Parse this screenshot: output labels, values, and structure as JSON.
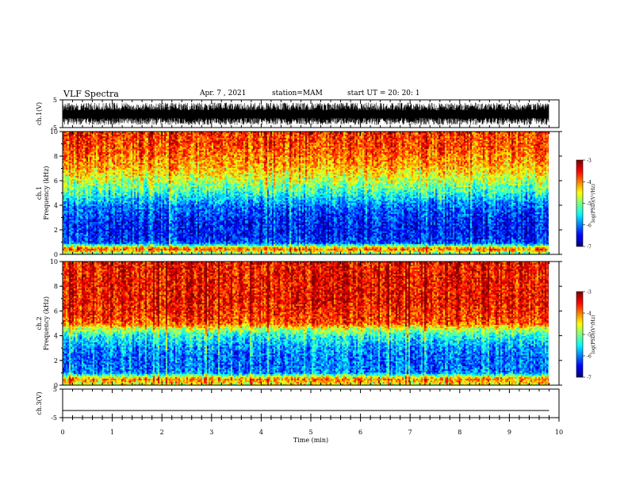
{
  "header": {
    "title": "VLF Spectra",
    "date": "Apr. 7 , 2021",
    "station": "station=MAM",
    "start": "start UT =  20: 20: 1"
  },
  "colorbar": {
    "label": "log(PSD)(V²/Hz)",
    "ticks": [
      "-3",
      "-4",
      "-5",
      "-6",
      "-7"
    ]
  },
  "chart_data": [
    {
      "type": "line",
      "panel": "ch1-waveform",
      "ylabel": "ch.1(V)",
      "ylim": [
        -5,
        5
      ],
      "yticks": [
        "5",
        "-5"
      ],
      "xlim": [
        0,
        10
      ],
      "trace": "dense noisy waveform spanning roughly -4 to 4 V over 0-9.8 min"
    },
    {
      "type": "heatmap",
      "panel": "ch1-spectrogram",
      "ylabel": "ch.1",
      "ylabel2": "Frequency (kHz)",
      "xlim": [
        0,
        10
      ],
      "ylim": [
        0,
        10
      ],
      "yticks": [
        "0",
        "2",
        "4",
        "6",
        "8",
        "10"
      ],
      "clim": [
        -7,
        -3
      ],
      "data_x_end": 9.8,
      "profile_freq_khz": [
        0,
        0.5,
        1,
        2,
        3,
        4,
        5,
        6,
        7,
        8,
        9,
        10
      ],
      "profile_log_psd": [
        -5.5,
        -3.8,
        -6.3,
        -6.5,
        -6.4,
        -6.1,
        -5.4,
        -4.8,
        -4.3,
        -4.0,
        -3.8,
        -3.7
      ]
    },
    {
      "type": "heatmap",
      "panel": "ch2-spectrogram",
      "ylabel": "ch.2",
      "ylabel2": "Frequency (kHz)",
      "xlim": [
        0,
        10
      ],
      "ylim": [
        0,
        10
      ],
      "yticks": [
        "0",
        "2",
        "4",
        "6",
        "8",
        "10"
      ],
      "clim": [
        -7,
        -3
      ],
      "data_x_end": 9.8,
      "profile_freq_khz": [
        0,
        0.5,
        1,
        2,
        3,
        4,
        4.5,
        5,
        6,
        7,
        8,
        10
      ],
      "profile_log_psd": [
        -4.6,
        -4.0,
        -6.0,
        -6.1,
        -5.9,
        -5.4,
        -4.8,
        -3.8,
        -3.6,
        -3.5,
        -3.5,
        -3.5
      ]
    },
    {
      "type": "line",
      "panel": "ch3-waveform",
      "ylabel": "ch.3(V)",
      "xlabel": "Time (min)",
      "ylim": [
        -5,
        5
      ],
      "yticks": [
        "5",
        "-5"
      ],
      "xlim": [
        0,
        10
      ],
      "xticks": [
        "0",
        "1",
        "2",
        "3",
        "4",
        "5",
        "6",
        "7",
        "8",
        "9",
        "10"
      ],
      "y": [
        -2.5,
        -2.5
      ],
      "x": [
        0,
        9.8
      ]
    }
  ]
}
